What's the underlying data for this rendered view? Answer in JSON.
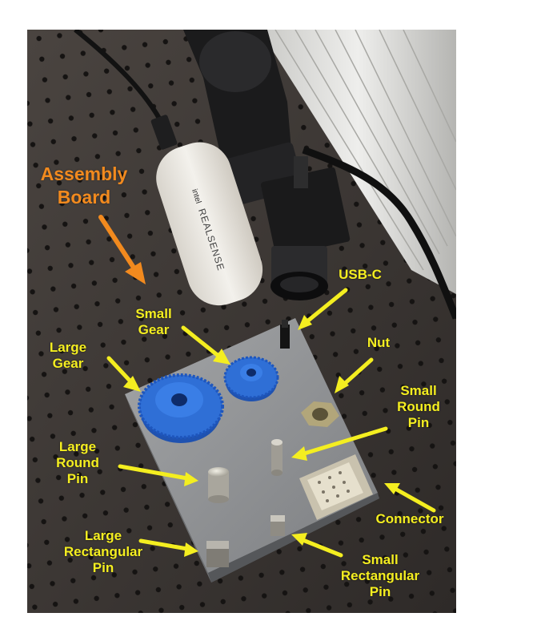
{
  "labels": {
    "assembly_board": [
      "Assembly",
      "Board"
    ],
    "usb_c": [
      "USB-C"
    ],
    "small_gear": [
      "Small",
      "Gear"
    ],
    "nut": [
      "Nut"
    ],
    "large_gear": [
      "Large",
      "Gear"
    ],
    "small_round_pin": [
      "Small",
      "Round",
      "Pin"
    ],
    "large_round_pin": [
      "Large",
      "Round",
      "Pin"
    ],
    "connector": [
      "Connector"
    ],
    "large_rectangular_pin": [
      "Large",
      "Rectangular",
      "Pin"
    ],
    "small_rectangular_pin": [
      "Small",
      "Rectangular",
      "Pin"
    ]
  },
  "camera_brand": [
    "intel",
    "REALSENSE"
  ],
  "colors": {
    "label_yellow": "#f4ee20",
    "label_orange": "#f28a1e",
    "gear_blue": "#2f6fd6",
    "board_gray": "#8c8e90",
    "table_dark": "#3a3633"
  }
}
